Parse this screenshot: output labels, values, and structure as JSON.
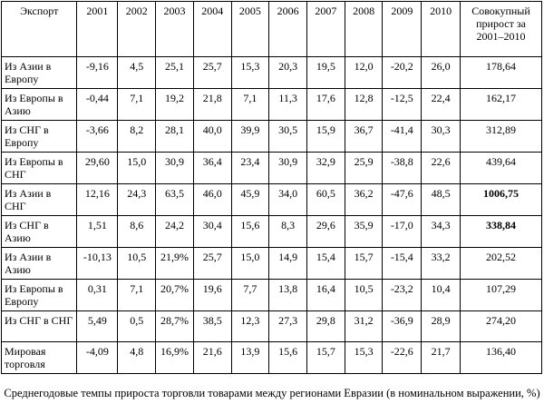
{
  "table": {
    "columns": [
      "Экспорт",
      "2001",
      "2002",
      "2003",
      "2004",
      "2005",
      "2006",
      "2007",
      "2008",
      "2009",
      "2010",
      "Совокупный прирост за 2001–2010"
    ],
    "rows": [
      {
        "label": "Из Азии в Европу",
        "values": [
          "-9,16",
          "4,5",
          "25,1",
          "25,7",
          "15,3",
          "20,3",
          "19,5",
          "12,0",
          "-20,2",
          "26,0",
          "178,64"
        ],
        "bold_total": false
      },
      {
        "label": "Из Европы в Азию",
        "values": [
          "-0,44",
          "7,1",
          "19,2",
          "21,8",
          "7,1",
          "11,3",
          "17,6",
          "12,8",
          "-12,5",
          "22,4",
          "162,17"
        ],
        "bold_total": false
      },
      {
        "label": "Из СНГ в Европу",
        "values": [
          "-3,66",
          "8,2",
          "28,1",
          "40,0",
          "39,9",
          "30,5",
          "15,9",
          "36,7",
          "-41,4",
          "30,3",
          "312,89"
        ],
        "bold_total": false
      },
      {
        "label": "Из Европы в СНГ",
        "values": [
          "29,60",
          "15,0",
          "30,9",
          "36,4",
          "23,4",
          "30,9",
          "32,9",
          "25,9",
          "-38,8",
          "22,6",
          "439,64"
        ],
        "bold_total": false
      },
      {
        "label": "Из Азии в СНГ",
        "values": [
          "12,16",
          "24,3",
          "63,5",
          "46,0",
          "45,9",
          "34,0",
          "60,5",
          "36,2",
          "-47,6",
          "48,5",
          "1006,75"
        ],
        "bold_total": true
      },
      {
        "label": "Из СНГ в Азию",
        "values": [
          "1,51",
          "8,6",
          "24,2",
          "30,4",
          "15,6",
          "8,3",
          "29,6",
          "35,9",
          "-17,0",
          "34,3",
          "338,84"
        ],
        "bold_total": true
      },
      {
        "label": "Из Азии в Азию",
        "values": [
          "-10,13",
          "10,5",
          "21,9%",
          "25,7",
          "15,0",
          "14,9",
          "15,4",
          "15,7",
          "-15,4",
          "33,2",
          "202,52"
        ],
        "bold_total": false
      },
      {
        "label": "Из Европы в Европу",
        "values": [
          "0,31",
          "7,1",
          "20,7%",
          "19,6",
          "7,7",
          "13,8",
          "16,4",
          "10,5",
          "-23,2",
          "10,4",
          "107,29"
        ],
        "bold_total": false
      },
      {
        "label": "Из СНГ в СНГ",
        "values": [
          "5,49",
          "0,5",
          "28,7%",
          "38,5",
          "12,3",
          "27,3",
          "29,8",
          "31,2",
          "-36,9",
          "28,9",
          "274,20"
        ],
        "bold_total": false
      },
      {
        "label": "Мировая торговля",
        "values": [
          "-4,09",
          "4,8",
          "16,9%",
          "21,6",
          "13,9",
          "15,6",
          "15,7",
          "15,3",
          "-22,6",
          "21,7",
          "136,40"
        ],
        "bold_total": false
      }
    ]
  },
  "caption": "Среднегодовые темпы прироста торговли товарами между регионами Евразии (в номинальном выражении, %)"
}
